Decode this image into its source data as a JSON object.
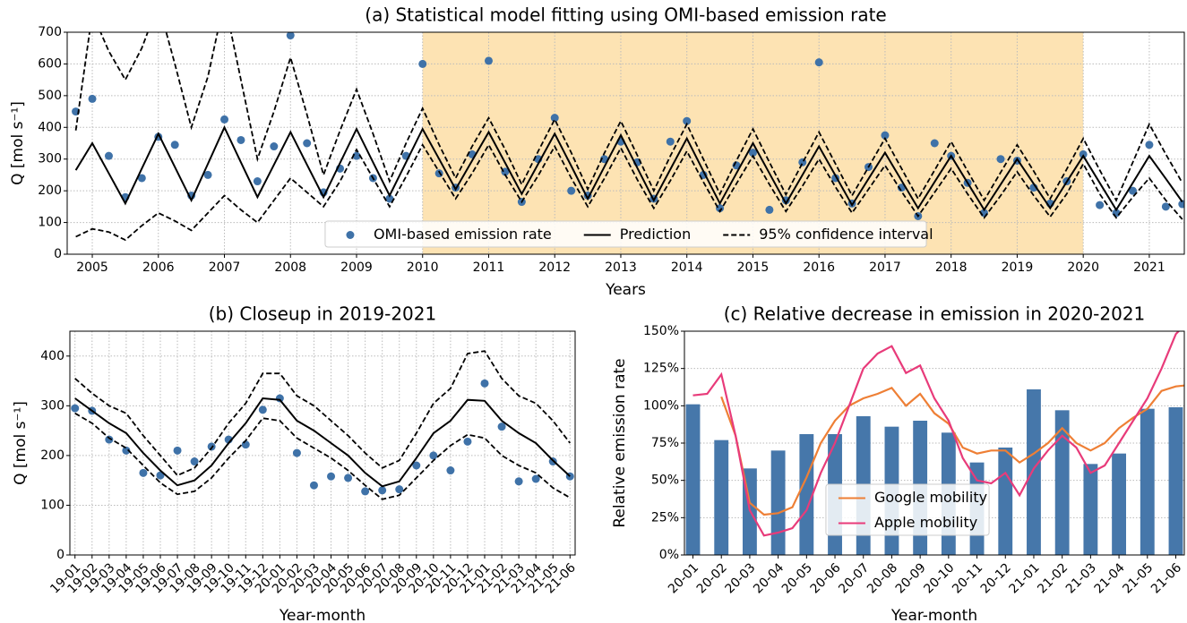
{
  "chart_data": [
    {
      "type": "line",
      "title": "(a) Statistical model fitting using OMI-based emission rate",
      "xlabel": "Years",
      "ylabel": "Q [mol s⁻¹]",
      "xlim": [
        2004.62,
        2021.53
      ],
      "ylim": [
        0,
        700
      ],
      "xticks": [
        2005,
        2006,
        2007,
        2008,
        2009,
        2010,
        2011,
        2012,
        2013,
        2014,
        2015,
        2016,
        2017,
        2018,
        2019,
        2020,
        2021
      ],
      "yticks": [
        0,
        100,
        200,
        300,
        400,
        500,
        600,
        700
      ],
      "grid": true,
      "legend": "lower center",
      "highlight": {
        "xrange": [
          2010,
          2020
        ],
        "color": "#fde3b3"
      },
      "x": [
        2004.75,
        2005,
        2005.25,
        2005.5,
        2005.75,
        2006,
        2006.25,
        2006.5,
        2006.75,
        2007,
        2007.25,
        2007.5,
        2007.75,
        2008,
        2008.25,
        2008.5,
        2008.75,
        2009,
        2009.25,
        2009.5,
        2009.75,
        2010,
        2010.25,
        2010.5,
        2010.75,
        2011,
        2011.25,
        2011.5,
        2011.75,
        2012,
        2012.25,
        2012.5,
        2012.75,
        2013,
        2013.25,
        2013.5,
        2013.75,
        2014,
        2014.25,
        2014.5,
        2014.75,
        2015,
        2015.25,
        2015.5,
        2015.75,
        2016,
        2016.25,
        2016.5,
        2016.75,
        2017,
        2017.25,
        2017.5,
        2017.75,
        2018,
        2018.25,
        2018.5,
        2018.75,
        2019,
        2019.25,
        2019.5,
        2019.75,
        2020,
        2020.25,
        2020.5,
        2020.75,
        2021,
        2021.25,
        2021.5
      ],
      "series": [
        {
          "name": "OMI-based emission rate",
          "style": "dots",
          "color": "#3f72a8",
          "values": [
            450,
            490,
            310,
            180,
            240,
            370,
            345,
            185,
            250,
            425,
            360,
            230,
            340,
            690,
            350,
            195,
            270,
            310,
            240,
            175,
            310,
            600,
            255,
            210,
            315,
            610,
            260,
            165,
            300,
            430,
            200,
            185,
            300,
            355,
            290,
            175,
            355,
            420,
            250,
            145,
            280,
            320,
            140,
            170,
            290,
            605,
            240,
            160,
            275,
            375,
            210,
            120,
            350,
            310,
            225,
            130,
            300,
            295,
            210,
            160,
            230,
            315,
            155,
            130,
            200,
            345,
            150,
            158
          ]
        },
        {
          "name": "Prediction",
          "style": "solid",
          "color": "#000000",
          "values": [
            265,
            350,
            255,
            160,
            270,
            380,
            275,
            170,
            285,
            400,
            290,
            180,
            282,
            385,
            282,
            180,
            288,
            395,
            290,
            185,
            290,
            395,
            300,
            205,
            295,
            385,
            288,
            190,
            285,
            380,
            278,
            175,
            275,
            375,
            272,
            170,
            268,
            365,
            262,
            160,
            255,
            350,
            255,
            160,
            250,
            340,
            248,
            155,
            238,
            320,
            232,
            145,
            228,
            310,
            225,
            140,
            220,
            300,
            222,
            145,
            228,
            310,
            225,
            140,
            225,
            310,
            238,
            165
          ]
        },
        {
          "name": "95% confidence interval",
          "style": "dashed",
          "color": "#000000",
          "upper": [
            390,
            760,
            640,
            550,
            650,
            790,
            600,
            400,
            560,
            800,
            550,
            300,
            450,
            620,
            440,
            250,
            390,
            520,
            380,
            230,
            350,
            460,
            345,
            240,
            340,
            430,
            330,
            220,
            325,
            425,
            320,
            205,
            318,
            420,
            312,
            200,
            310,
            410,
            300,
            190,
            295,
            395,
            290,
            188,
            288,
            385,
            285,
            185,
            275,
            365,
            270,
            175,
            265,
            355,
            262,
            170,
            258,
            345,
            262,
            175,
            268,
            365,
            265,
            170,
            290,
            410,
            315,
            225
          ],
          "lower": [
            55,
            80,
            70,
            45,
            90,
            130,
            105,
            75,
            130,
            185,
            140,
            100,
            170,
            240,
            195,
            150,
            230,
            330,
            240,
            150,
            245,
            345,
            260,
            175,
            255,
            345,
            250,
            165,
            248,
            340,
            240,
            150,
            238,
            335,
            235,
            145,
            232,
            325,
            228,
            135,
            222,
            310,
            220,
            135,
            215,
            300,
            212,
            130,
            205,
            280,
            198,
            120,
            195,
            270,
            190,
            115,
            185,
            260,
            185,
            118,
            190,
            285,
            190,
            115,
            180,
            240,
            170,
            110
          ]
        }
      ]
    },
    {
      "type": "line",
      "title": "(b) Closeup in 2019-2021",
      "xlabel": "Year-month",
      "ylabel": "Q [mol s⁻¹]",
      "ylim": [
        0,
        450
      ],
      "yticks": [
        0,
        100,
        200,
        300,
        400
      ],
      "grid": true,
      "categories": [
        "19-01",
        "19-02",
        "19-03",
        "19-04",
        "19-05",
        "19-06",
        "19-07",
        "19-08",
        "19-09",
        "19-10",
        "19-11",
        "19-12",
        "20-01",
        "20-02",
        "20-03",
        "20-04",
        "20-05",
        "20-06",
        "20-07",
        "20-08",
        "20-09",
        "20-10",
        "20-11",
        "20-12",
        "21-01",
        "21-02",
        "21-03",
        "21-04",
        "21-05",
        "21-06"
      ],
      "series": [
        {
          "name": "OMI-based emission rate",
          "style": "dots",
          "color": "#3f72a8",
          "values": [
            295,
            290,
            232,
            210,
            165,
            160,
            210,
            188,
            218,
            232,
            222,
            292,
            315,
            205,
            140,
            158,
            155,
            128,
            130,
            132,
            180,
            200,
            170,
            228,
            345,
            258,
            148,
            153,
            188,
            158
          ]
        },
        {
          "name": "Prediction",
          "style": "solid",
          "color": "#000000",
          "values": [
            315,
            290,
            265,
            245,
            205,
            170,
            140,
            150,
            180,
            225,
            265,
            315,
            312,
            270,
            250,
            225,
            200,
            165,
            138,
            148,
            195,
            245,
            270,
            312,
            310,
            270,
            245,
            225,
            190,
            158
          ]
        },
        {
          "name": "95% confidence interval",
          "style": "dashed",
          "color": "#000000",
          "upper": [
            355,
            325,
            300,
            285,
            240,
            200,
            160,
            175,
            215,
            265,
            305,
            365,
            365,
            320,
            300,
            270,
            240,
            205,
            175,
            190,
            245,
            305,
            335,
            405,
            410,
            355,
            320,
            305,
            270,
            225
          ],
          "lower": [
            285,
            265,
            235,
            215,
            180,
            145,
            122,
            128,
            155,
            195,
            230,
            275,
            270,
            235,
            215,
            195,
            170,
            140,
            112,
            120,
            155,
            190,
            220,
            242,
            235,
            200,
            180,
            165,
            135,
            115
          ]
        }
      ]
    },
    {
      "type": "bar",
      "title": "(c) Relative decrease in emission in 2020-2021",
      "xlabel": "Year-month",
      "ylabel": "Relative emission rate",
      "ylim": [
        0,
        150
      ],
      "yticks": [
        {
          "value": 0,
          "label": "0%"
        },
        {
          "value": 25,
          "label": "25%"
        },
        {
          "value": 50,
          "label": "50%"
        },
        {
          "value": 75,
          "label": "75%"
        },
        {
          "value": 100,
          "label": "100%"
        },
        {
          "value": 125,
          "label": "125%"
        },
        {
          "value": 150,
          "label": "150%"
        }
      ],
      "grid": true,
      "legend": "lower center",
      "categories": [
        "20-01",
        "20-02",
        "20-03",
        "20-04",
        "20-05",
        "20-06",
        "20-07",
        "20-08",
        "20-09",
        "20-10",
        "20-11",
        "20-12",
        "21-01",
        "21-02",
        "21-03",
        "21-04",
        "21-05",
        "21-06"
      ],
      "values": [
        101,
        77,
        58,
        70,
        81,
        81,
        93,
        86,
        90,
        82,
        62,
        72,
        111,
        97,
        61,
        68,
        98,
        99
      ],
      "color": "#4677aa",
      "lines": [
        {
          "name": "Google mobility",
          "color": "#ee7f35",
          "values": [
            null,
            null,
            106,
            80,
            35,
            27,
            28,
            32,
            52,
            75,
            90,
            100,
            105,
            108,
            112,
            100,
            108,
            95,
            88,
            72,
            68,
            70,
            70,
            62,
            68,
            75,
            85,
            75,
            70,
            75,
            85,
            92,
            98,
            110,
            113,
            114
          ]
        },
        {
          "name": "Apple mobility",
          "color": "#e83b7a",
          "values": [
            107,
            108,
            121,
            80,
            30,
            13,
            15,
            18,
            30,
            55,
            75,
            100,
            125,
            135,
            140,
            122,
            127,
            105,
            90,
            65,
            50,
            48,
            55,
            40,
            58,
            70,
            80,
            72,
            55,
            60,
            75,
            90,
            105,
            125,
            148,
            158
          ]
        }
      ]
    }
  ]
}
